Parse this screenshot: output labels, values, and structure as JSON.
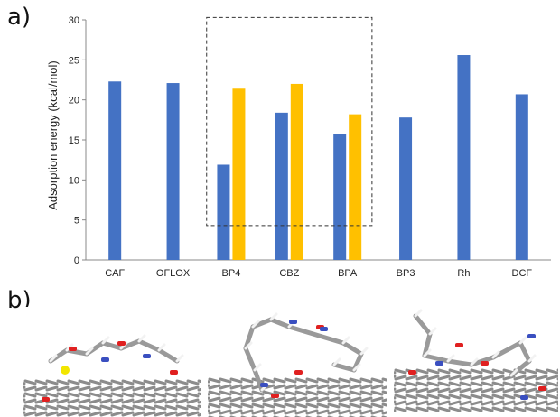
{
  "panels": {
    "a": "a)",
    "b": "b)"
  },
  "colors": {
    "blue": "#4472C4",
    "yellow": "#FFC000",
    "carbon": "#8c8c8c",
    "oxygen": "#e02020",
    "nitrogen": "#3a4fc0",
    "hydrogen": "#f2f2f2",
    "sulfur": "#f2e600"
  },
  "chart_data": {
    "type": "bar",
    "title": "",
    "xlabel": "",
    "ylabel": "Adsorption energy (kcal/mol)",
    "ylim": [
      0,
      30
    ],
    "yticks": [
      0,
      5,
      10,
      15,
      20,
      25,
      30
    ],
    "grid": false,
    "categories": [
      "CAF",
      "OFLOX",
      "BP4",
      "CBZ",
      "BPA",
      "BP3",
      "Rh",
      "DCF"
    ],
    "series": [
      {
        "color": "#4472C4",
        "values": [
          22.3,
          22.1,
          11.9,
          18.4,
          15.7,
          17.8,
          25.6,
          20.7
        ]
      },
      {
        "color": "#FFC000",
        "values": [
          null,
          null,
          21.4,
          22.0,
          18.2,
          null,
          null,
          null
        ]
      }
    ],
    "highlight_box": {
      "from_category": "BP4",
      "to_category": "BPA",
      "y_range": [
        4.3,
        30.3
      ],
      "style": "dashed"
    }
  }
}
